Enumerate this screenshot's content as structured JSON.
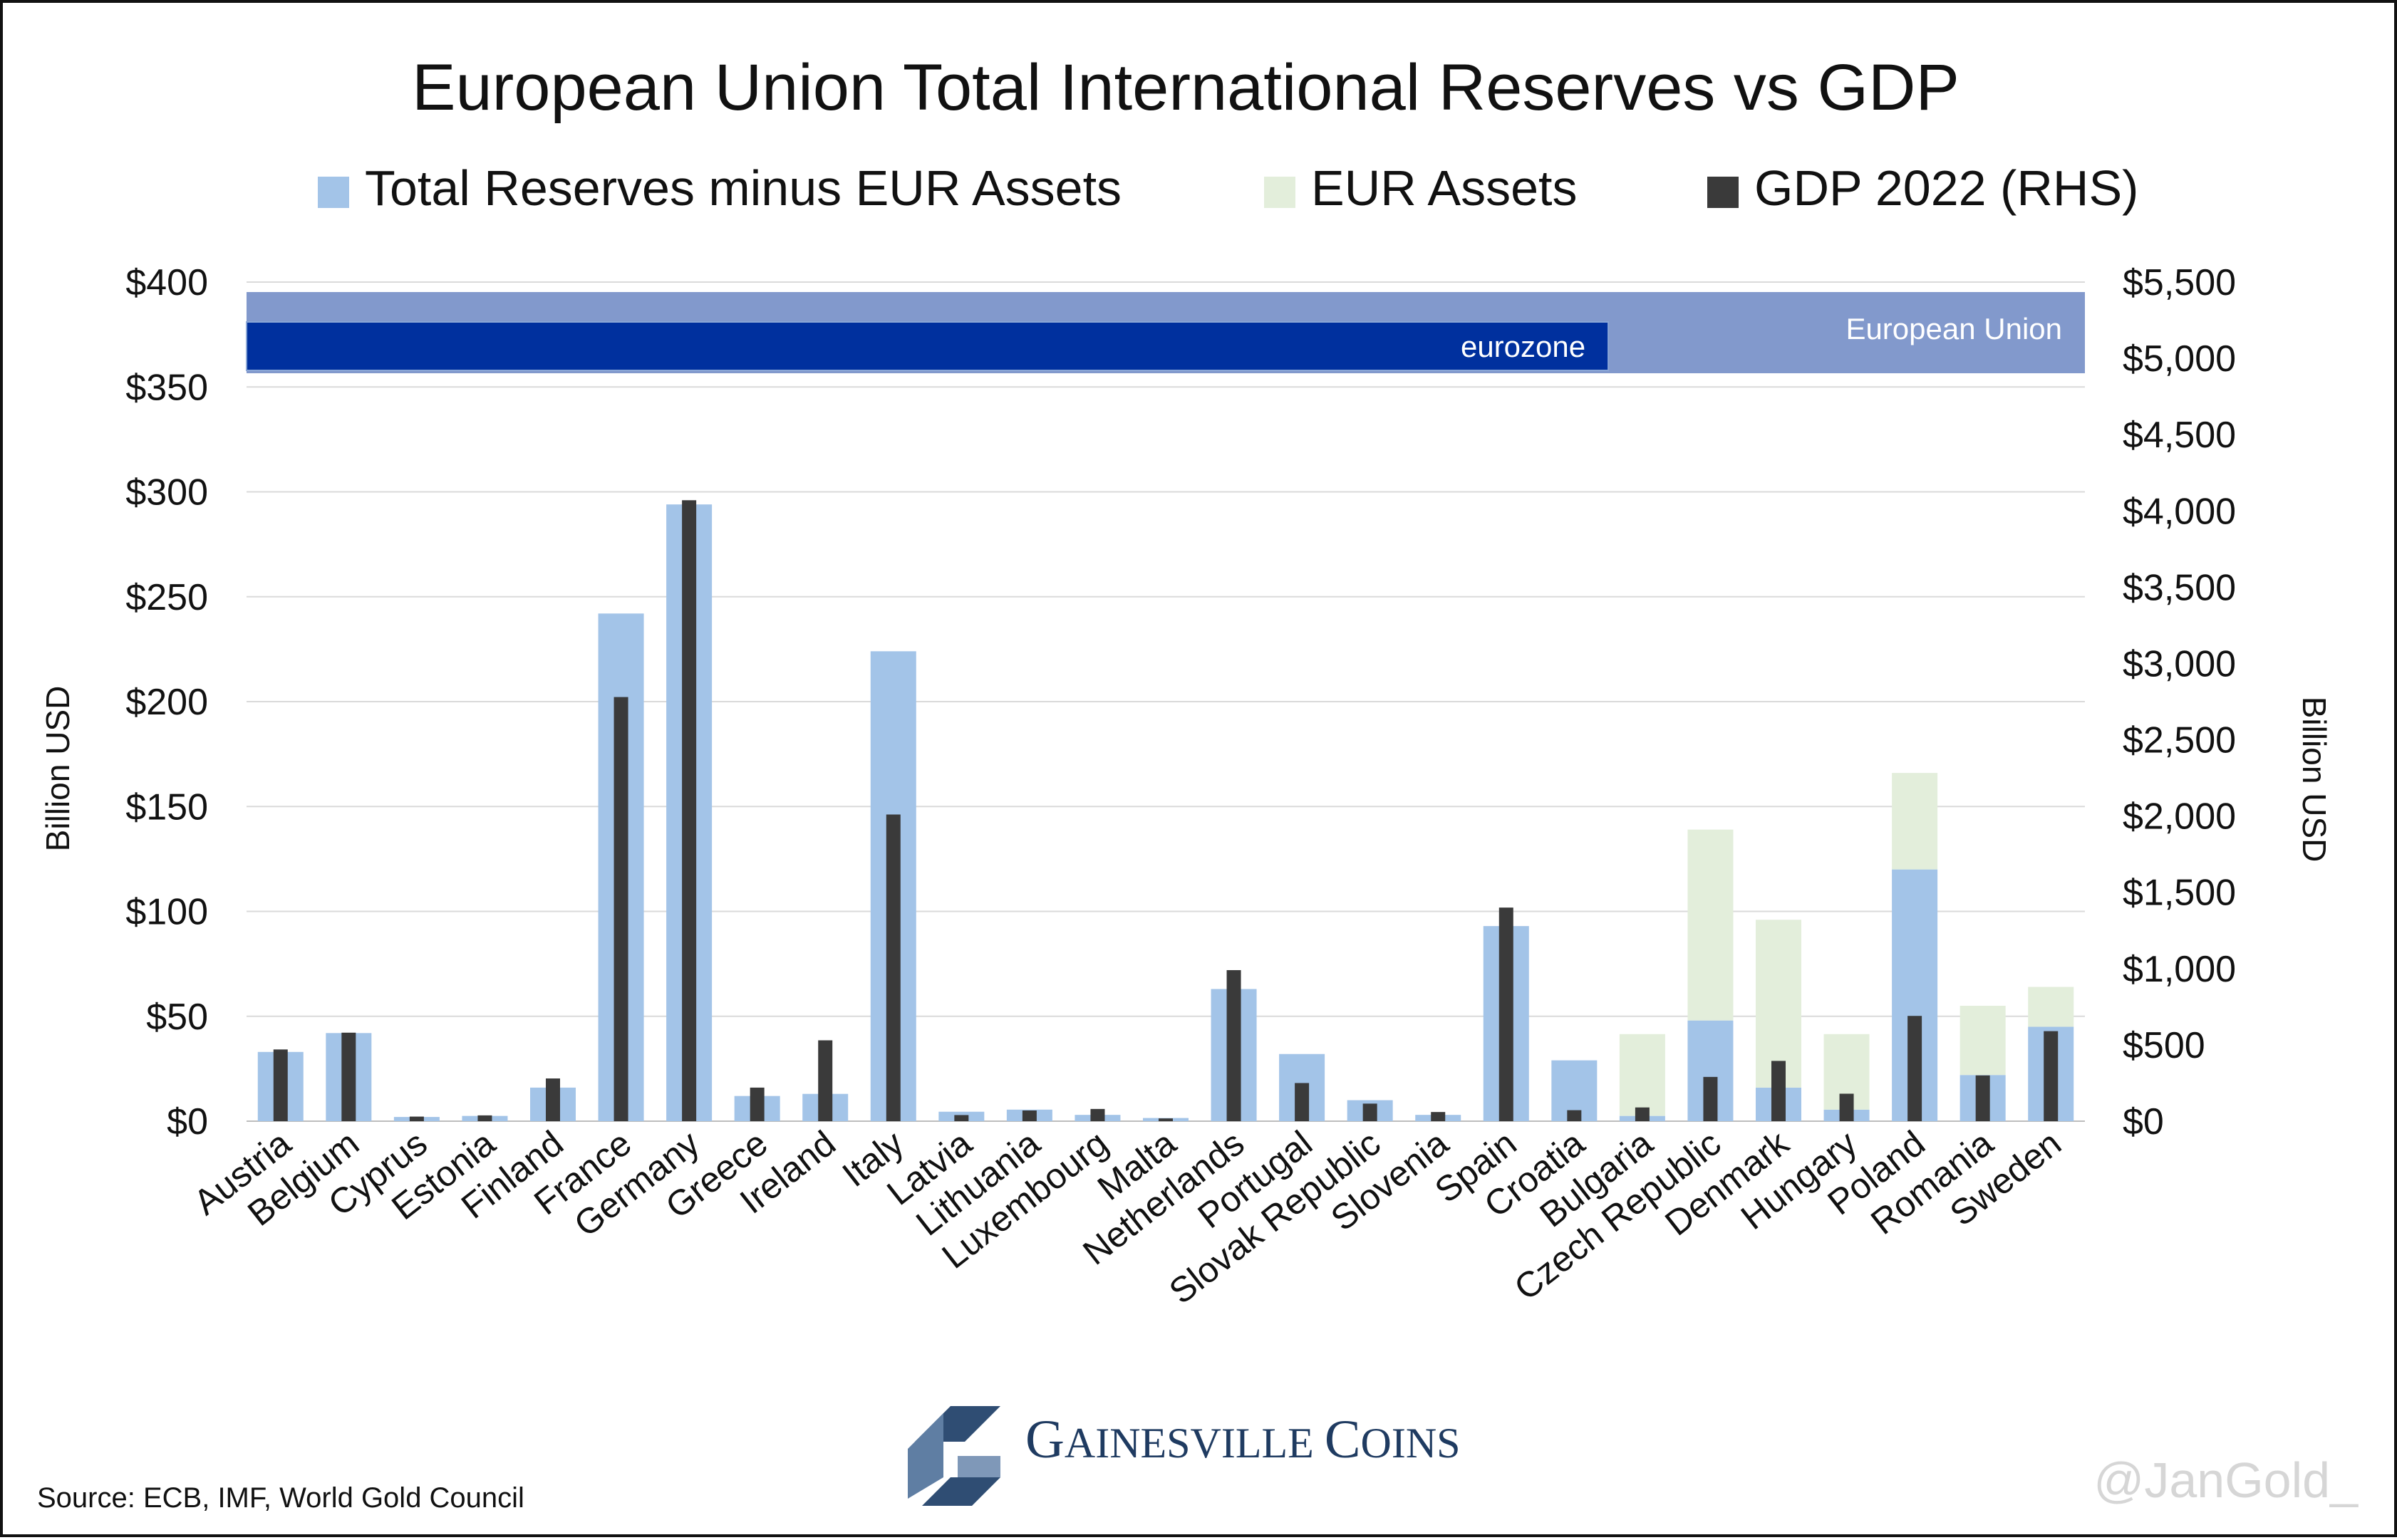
{
  "chart_data": {
    "type": "bar",
    "title": "European Union Total International Reserves vs GDP",
    "categories": [
      "Austria",
      "Belgium",
      "Cyprus",
      "Estonia",
      "Finland",
      "France",
      "Germany",
      "Greece",
      "Ireland",
      "Italy",
      "Latvia",
      "Lithuania",
      "Luxembourg",
      "Malta",
      "Netherlands",
      "Portugal",
      "Slovak Republic",
      "Slovenia",
      "Spain",
      "Croatia",
      "Bulgaria",
      "Czech Republic",
      "Denmark",
      "Hungary",
      "Poland",
      "Romania",
      "Sweden"
    ],
    "series": [
      {
        "name": "Total Reserves minus EUR Assets",
        "axis": "left",
        "stacked": true,
        "color": "#a3c4e8",
        "values": [
          33,
          42,
          2,
          2.5,
          16,
          242,
          294,
          12,
          13,
          224,
          4.5,
          5.5,
          3,
          1.5,
          63,
          32,
          10,
          3,
          93,
          29,
          2.5,
          48,
          16,
          5.5,
          120,
          22,
          45
        ]
      },
      {
        "name": "EUR Assets",
        "axis": "left",
        "stacked": true,
        "color": "#e3eedb",
        "values": [
          0,
          0,
          0,
          0,
          0,
          0,
          0,
          0,
          0,
          0,
          0,
          0,
          0,
          0,
          0,
          0,
          0,
          0,
          0,
          0,
          39,
          91,
          80,
          36,
          46,
          33,
          19
        ]
      },
      {
        "name": "GDP 2022 (RHS)",
        "axis": "right",
        "color": "#3a3a3a",
        "values": [
          470,
          580,
          30,
          38,
          280,
          2780,
          4070,
          220,
          530,
          2010,
          40,
          70,
          80,
          18,
          990,
          250,
          115,
          60,
          1400,
          72,
          90,
          290,
          395,
          180,
          690,
          300,
          590
        ]
      }
    ],
    "y_left": {
      "label": "Billion USD",
      "min": 0,
      "max": 400,
      "ticks": [
        "$0",
        "$50",
        "$100",
        "$150",
        "$200",
        "$250",
        "$300",
        "$350",
        "$400"
      ]
    },
    "y_right": {
      "label": "Billion USD",
      "min": 0,
      "max": 5500,
      "ticks": [
        "$0",
        "$500",
        "$1,000",
        "$1,500",
        "$2,000",
        "$2,500",
        "$3,000",
        "$3,500",
        "$4,000",
        "$4,500",
        "$5,000",
        "$5,500"
      ]
    },
    "groups": [
      {
        "name": "European Union",
        "from": "Austria",
        "to": "Sweden",
        "color": "#8299cc"
      },
      {
        "name": "eurozone",
        "from": "Austria",
        "to": "Croatia",
        "color": "#00309e"
      }
    ],
    "legend": "top-center",
    "grid": true
  },
  "footer": {
    "source": "Source: ECB, IMF, World Gold Council",
    "brand_first": "G",
    "brand_rest1": "AINESVILLE ",
    "brand_second": "C",
    "brand_rest2": "OINS",
    "watermark": "@JanGold_"
  }
}
